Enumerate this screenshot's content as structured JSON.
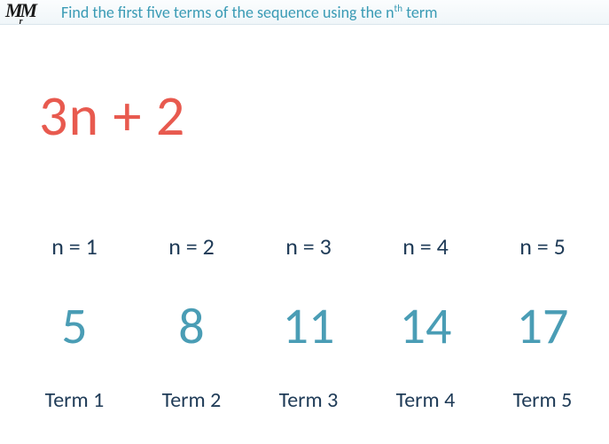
{
  "colors": {
    "logo": "#1a1a1a",
    "title": "#3a9bb5",
    "formula": "#e85a4f",
    "n_label": "#1f3b57",
    "value": "#4a9db5",
    "term_label": "#1f3b57"
  },
  "typography": {
    "formula_fontsize": 64,
    "value_fontsize": 58,
    "nlabel_fontsize": 26,
    "termlabel_fontsize": 24,
    "title_fontsize": 18
  },
  "logo": {
    "m1": "M",
    "sub": "r",
    "m2": "M"
  },
  "title": {
    "before_sup": "Find the first five terms of the sequence using the n",
    "sup": "th",
    "after_sup": " term"
  },
  "formula": "3n + 2",
  "sequence": {
    "n_labels": [
      "n = 1",
      "n = 2",
      "n = 3",
      "n = 4",
      "n = 5"
    ],
    "values": [
      "5",
      "8",
      "11",
      "14",
      "17"
    ],
    "term_labels": [
      "Term 1",
      "Term 2",
      "Term 3",
      "Term 4",
      "Term 5"
    ]
  }
}
